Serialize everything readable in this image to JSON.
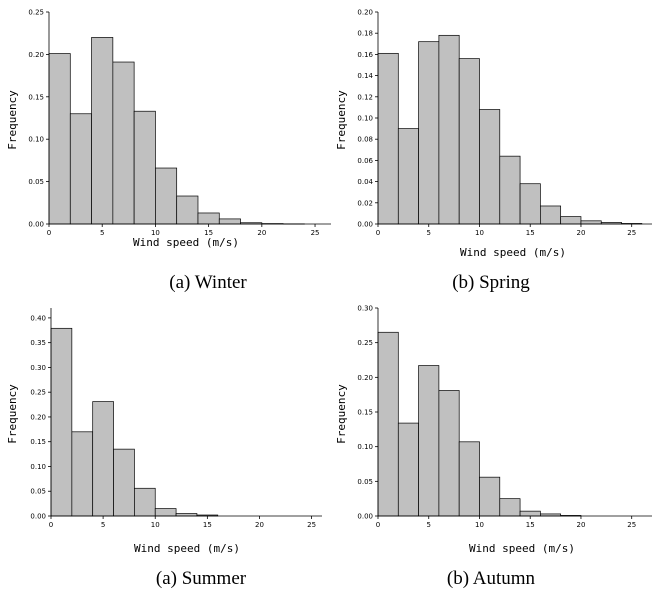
{
  "chart_data": [
    {
      "type": "bar",
      "caption": "(a) Winter",
      "xlabel": "Wind speed (m/s)",
      "ylabel": "Frequency",
      "xlim": [
        0,
        26.5
      ],
      "ylim": [
        0,
        0.25
      ],
      "xticks": [
        0,
        5,
        10,
        15,
        20,
        25
      ],
      "yticks": [
        "0.00",
        "0.05",
        "0.10",
        "0.15",
        "0.20",
        "0.25"
      ],
      "bin_width": 2,
      "bins": [
        0,
        2,
        4,
        6,
        8,
        10,
        12,
        14,
        16,
        18,
        20,
        22
      ],
      "values": [
        0.201,
        0.13,
        0.22,
        0.191,
        0.133,
        0.066,
        0.033,
        0.013,
        0.006,
        0.0015,
        0.0005,
        0.0002
      ]
    },
    {
      "type": "bar",
      "caption": "(b) Spring",
      "xlabel": "Wind speed (m/s)",
      "ylabel": "Frequency",
      "xlim": [
        0,
        27
      ],
      "ylim": [
        0,
        0.2
      ],
      "xticks": [
        0,
        5,
        10,
        15,
        20,
        25
      ],
      "yticks": [
        "0.00",
        "0.02",
        "0.04",
        "0.06",
        "0.08",
        "0.10",
        "0.12",
        "0.14",
        "0.16",
        "0.18",
        "0.20"
      ],
      "bin_width": 2,
      "bins": [
        0,
        2,
        4,
        6,
        8,
        10,
        12,
        14,
        16,
        18,
        20,
        22,
        24
      ],
      "values": [
        0.161,
        0.09,
        0.172,
        0.178,
        0.156,
        0.108,
        0.064,
        0.038,
        0.017,
        0.007,
        0.003,
        0.0015,
        0.0005
      ]
    },
    {
      "type": "bar",
      "caption": "(a) Summer",
      "xlabel": "Wind speed (m/s)",
      "ylabel": "Frequency",
      "xlim": [
        0,
        26
      ],
      "ylim": [
        0,
        0.42
      ],
      "xticks": [
        0,
        5,
        10,
        15,
        20,
        25
      ],
      "yticks": [
        "0.00",
        "0.05",
        "0.10",
        "0.15",
        "0.20",
        "0.25",
        "0.30",
        "0.35",
        "0.40"
      ],
      "bin_width": 2,
      "bins": [
        0,
        2,
        4,
        6,
        8,
        10,
        12,
        14
      ],
      "values": [
        0.379,
        0.17,
        0.231,
        0.135,
        0.056,
        0.015,
        0.005,
        0.002
      ]
    },
    {
      "type": "bar",
      "caption": "(b) Autumn",
      "xlabel": "Wind speed (m/s)",
      "ylabel": "Frequency",
      "xlim": [
        0,
        27
      ],
      "ylim": [
        0,
        0.3
      ],
      "xticks": [
        0,
        5,
        10,
        15,
        20,
        25
      ],
      "yticks": [
        "0.00",
        "0.05",
        "0.10",
        "0.15",
        "0.20",
        "0.25",
        "0.30"
      ],
      "bin_width": 2,
      "bins": [
        0,
        2,
        4,
        6,
        8,
        10,
        12,
        14,
        16,
        18
      ],
      "values": [
        0.265,
        0.134,
        0.217,
        0.181,
        0.107,
        0.056,
        0.025,
        0.007,
        0.003,
        0.0008
      ]
    }
  ]
}
